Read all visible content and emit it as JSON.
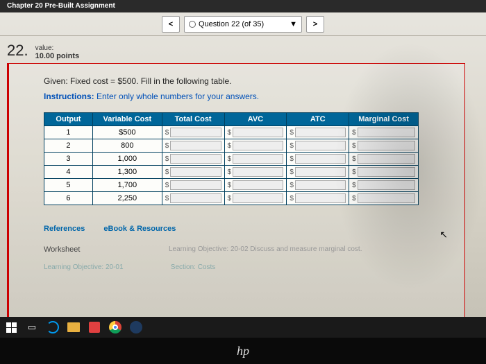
{
  "header": {
    "assignment_title": "Chapter 20 Pre-Built Assignment"
  },
  "nav": {
    "prev": "<",
    "next": ">",
    "dropdown": "▼",
    "question_label": "Question 22 (of 35)"
  },
  "question": {
    "number": "22.",
    "value_label": "value:",
    "points": "10.00 points",
    "given": "Given: Fixed cost = $500. Fill in the following table.",
    "instructions_prefix": "Instructions:",
    "instructions_text": " Enter only whole numbers for your answers."
  },
  "table": {
    "headers": [
      "Output",
      "Variable Cost",
      "Total Cost",
      "AVC",
      "ATC",
      "Marginal Cost"
    ],
    "rows": [
      {
        "output": "1",
        "vc": "$500"
      },
      {
        "output": "2",
        "vc": "800"
      },
      {
        "output": "3",
        "vc": "1,000"
      },
      {
        "output": "4",
        "vc": "1,300"
      },
      {
        "output": "5",
        "vc": "1,700"
      },
      {
        "output": "6",
        "vc": "2,250"
      }
    ],
    "currency": "$"
  },
  "links": {
    "references": "References",
    "ebook": "eBook & Resources",
    "worksheet": "Worksheet",
    "learning_obj_1": "Learning Objective: 20-02 Discuss and measure marginal cost.",
    "learning_obj_2": "Learning Objective: 20-01",
    "section": "Section: Costs"
  },
  "logo": "hp"
}
